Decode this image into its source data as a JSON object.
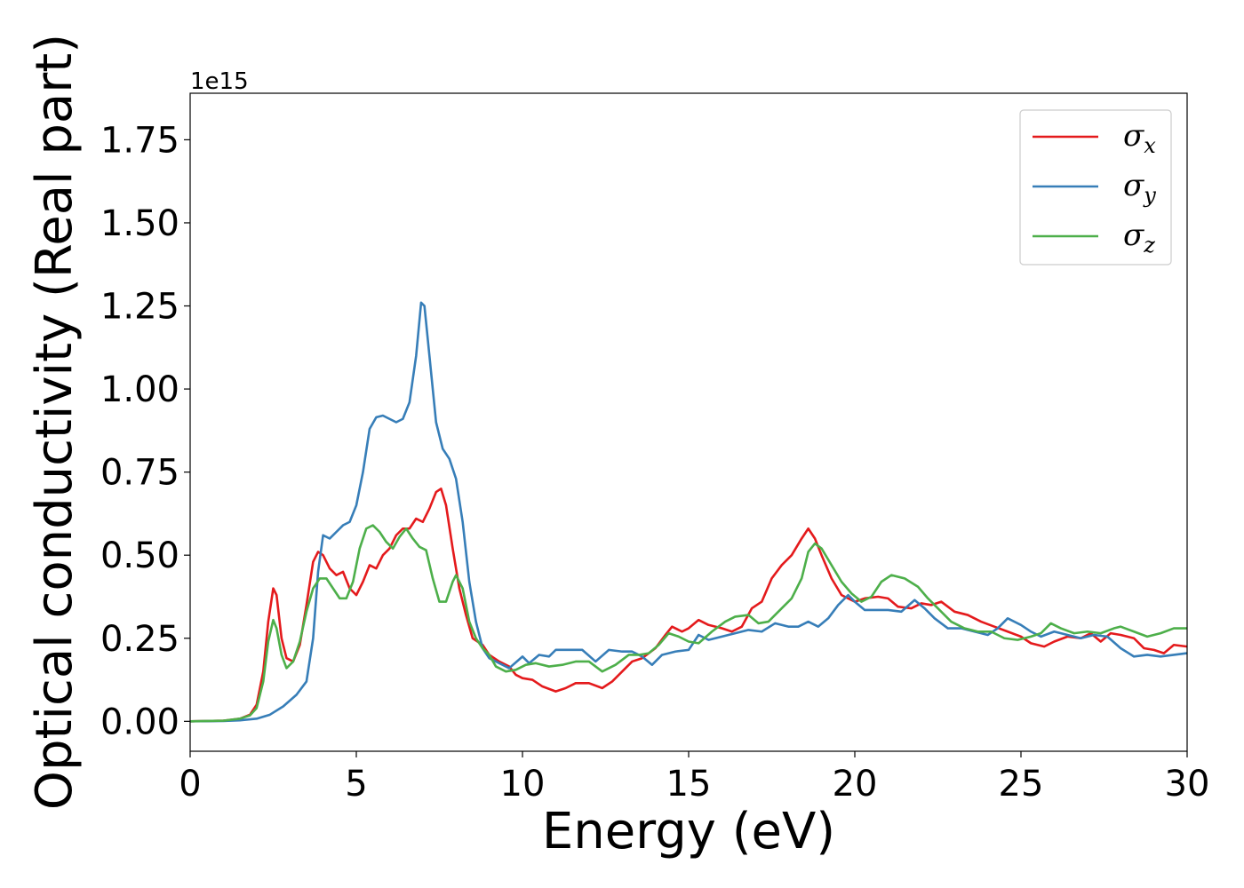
{
  "chart_data": {
    "type": "line",
    "title": "",
    "xlabel": "Energy (eV)",
    "ylabel": "Optical conductivity (Real part)",
    "y_offset_label": "1e15",
    "xlim": [
      0,
      30
    ],
    "ylim": [
      -0.09,
      1.89
    ],
    "x_ticks": [
      0,
      5,
      10,
      15,
      20,
      25,
      30
    ],
    "y_ticks": [
      0.0,
      0.25,
      0.5,
      0.75,
      1.0,
      1.25,
      1.5,
      1.75
    ],
    "x_tick_labels": [
      "0",
      "5",
      "10",
      "15",
      "20",
      "25",
      "30"
    ],
    "y_tick_labels": [
      "0.00",
      "0.25",
      "0.50",
      "0.75",
      "1.00",
      "1.25",
      "1.50",
      "1.75"
    ],
    "grid": false,
    "legend_position": "top-right",
    "series": [
      {
        "name": "σx",
        "name_symbol": "σ",
        "name_sub": "x",
        "color": "#e41a1c",
        "points": [
          [
            0,
            0
          ],
          [
            1,
            0.002
          ],
          [
            1.5,
            0.008
          ],
          [
            1.8,
            0.02
          ],
          [
            2.0,
            0.05
          ],
          [
            2.2,
            0.15
          ],
          [
            2.35,
            0.3
          ],
          [
            2.5,
            0.4
          ],
          [
            2.6,
            0.38
          ],
          [
            2.75,
            0.25
          ],
          [
            2.9,
            0.19
          ],
          [
            3.1,
            0.18
          ],
          [
            3.3,
            0.23
          ],
          [
            3.5,
            0.35
          ],
          [
            3.7,
            0.48
          ],
          [
            3.85,
            0.51
          ],
          [
            4.0,
            0.5
          ],
          [
            4.2,
            0.46
          ],
          [
            4.4,
            0.44
          ],
          [
            4.6,
            0.45
          ],
          [
            4.8,
            0.4
          ],
          [
            5.0,
            0.38
          ],
          [
            5.2,
            0.42
          ],
          [
            5.4,
            0.47
          ],
          [
            5.6,
            0.46
          ],
          [
            5.8,
            0.5
          ],
          [
            6.0,
            0.52
          ],
          [
            6.2,
            0.56
          ],
          [
            6.4,
            0.58
          ],
          [
            6.6,
            0.58
          ],
          [
            6.8,
            0.61
          ],
          [
            7.0,
            0.6
          ],
          [
            7.2,
            0.64
          ],
          [
            7.4,
            0.69
          ],
          [
            7.55,
            0.7
          ],
          [
            7.7,
            0.65
          ],
          [
            7.9,
            0.52
          ],
          [
            8.1,
            0.4
          ],
          [
            8.3,
            0.32
          ],
          [
            8.5,
            0.25
          ],
          [
            8.8,
            0.23
          ],
          [
            9.0,
            0.2
          ],
          [
            9.3,
            0.18
          ],
          [
            9.6,
            0.165
          ],
          [
            9.8,
            0.14
          ],
          [
            10.0,
            0.13
          ],
          [
            10.3,
            0.125
          ],
          [
            10.6,
            0.105
          ],
          [
            11.0,
            0.09
          ],
          [
            11.3,
            0.1
          ],
          [
            11.6,
            0.115
          ],
          [
            12.0,
            0.115
          ],
          [
            12.4,
            0.1
          ],
          [
            12.7,
            0.12
          ],
          [
            13.0,
            0.15
          ],
          [
            13.3,
            0.18
          ],
          [
            13.6,
            0.19
          ],
          [
            14.0,
            0.22
          ],
          [
            14.3,
            0.26
          ],
          [
            14.5,
            0.285
          ],
          [
            14.8,
            0.27
          ],
          [
            15.0,
            0.28
          ],
          [
            15.3,
            0.305
          ],
          [
            15.6,
            0.29
          ],
          [
            16.0,
            0.28
          ],
          [
            16.3,
            0.27
          ],
          [
            16.6,
            0.285
          ],
          [
            16.9,
            0.34
          ],
          [
            17.2,
            0.36
          ],
          [
            17.5,
            0.43
          ],
          [
            17.8,
            0.47
          ],
          [
            18.1,
            0.5
          ],
          [
            18.4,
            0.55
          ],
          [
            18.6,
            0.58
          ],
          [
            18.8,
            0.55
          ],
          [
            19.0,
            0.5
          ],
          [
            19.3,
            0.43
          ],
          [
            19.6,
            0.38
          ],
          [
            20.0,
            0.36
          ],
          [
            20.3,
            0.37
          ],
          [
            20.7,
            0.375
          ],
          [
            21.0,
            0.37
          ],
          [
            21.3,
            0.345
          ],
          [
            21.7,
            0.34
          ],
          [
            22.0,
            0.355
          ],
          [
            22.3,
            0.35
          ],
          [
            22.6,
            0.36
          ],
          [
            23.0,
            0.33
          ],
          [
            23.4,
            0.32
          ],
          [
            23.8,
            0.3
          ],
          [
            24.2,
            0.285
          ],
          [
            24.6,
            0.27
          ],
          [
            25.0,
            0.255
          ],
          [
            25.3,
            0.235
          ],
          [
            25.7,
            0.225
          ],
          [
            26.0,
            0.24
          ],
          [
            26.4,
            0.255
          ],
          [
            26.8,
            0.25
          ],
          [
            27.1,
            0.265
          ],
          [
            27.4,
            0.24
          ],
          [
            27.7,
            0.265
          ],
          [
            28.0,
            0.26
          ],
          [
            28.4,
            0.25
          ],
          [
            28.7,
            0.22
          ],
          [
            29.0,
            0.215
          ],
          [
            29.3,
            0.205
          ],
          [
            29.6,
            0.23
          ],
          [
            30.0,
            0.225
          ]
        ]
      },
      {
        "name": "σy",
        "name_symbol": "σ",
        "name_sub": "y",
        "color": "#377eb8",
        "points": [
          [
            0,
            0
          ],
          [
            1,
            0.001
          ],
          [
            1.5,
            0.003
          ],
          [
            2.0,
            0.008
          ],
          [
            2.4,
            0.02
          ],
          [
            2.8,
            0.045
          ],
          [
            3.2,
            0.08
          ],
          [
            3.5,
            0.12
          ],
          [
            3.7,
            0.25
          ],
          [
            3.85,
            0.45
          ],
          [
            4.0,
            0.56
          ],
          [
            4.2,
            0.55
          ],
          [
            4.4,
            0.57
          ],
          [
            4.6,
            0.59
          ],
          [
            4.8,
            0.6
          ],
          [
            5.0,
            0.65
          ],
          [
            5.2,
            0.75
          ],
          [
            5.4,
            0.88
          ],
          [
            5.6,
            0.915
          ],
          [
            5.8,
            0.92
          ],
          [
            6.0,
            0.91
          ],
          [
            6.2,
            0.9
          ],
          [
            6.4,
            0.91
          ],
          [
            6.6,
            0.96
          ],
          [
            6.8,
            1.1
          ],
          [
            6.95,
            1.26
          ],
          [
            7.05,
            1.25
          ],
          [
            7.2,
            1.1
          ],
          [
            7.4,
            0.9
          ],
          [
            7.6,
            0.82
          ],
          [
            7.8,
            0.79
          ],
          [
            8.0,
            0.73
          ],
          [
            8.2,
            0.6
          ],
          [
            8.4,
            0.42
          ],
          [
            8.6,
            0.3
          ],
          [
            8.8,
            0.22
          ],
          [
            9.0,
            0.19
          ],
          [
            9.3,
            0.175
          ],
          [
            9.6,
            0.16
          ],
          [
            10.0,
            0.195
          ],
          [
            10.2,
            0.175
          ],
          [
            10.5,
            0.2
          ],
          [
            10.8,
            0.195
          ],
          [
            11.0,
            0.215
          ],
          [
            11.4,
            0.215
          ],
          [
            11.8,
            0.215
          ],
          [
            12.2,
            0.18
          ],
          [
            12.6,
            0.215
          ],
          [
            13.0,
            0.21
          ],
          [
            13.3,
            0.21
          ],
          [
            13.6,
            0.195
          ],
          [
            13.9,
            0.17
          ],
          [
            14.2,
            0.2
          ],
          [
            14.6,
            0.21
          ],
          [
            15.0,
            0.215
          ],
          [
            15.3,
            0.26
          ],
          [
            15.6,
            0.245
          ],
          [
            16.0,
            0.255
          ],
          [
            16.4,
            0.265
          ],
          [
            16.8,
            0.275
          ],
          [
            17.2,
            0.27
          ],
          [
            17.6,
            0.295
          ],
          [
            18.0,
            0.285
          ],
          [
            18.3,
            0.285
          ],
          [
            18.6,
            0.3
          ],
          [
            18.9,
            0.285
          ],
          [
            19.2,
            0.31
          ],
          [
            19.5,
            0.35
          ],
          [
            19.8,
            0.38
          ],
          [
            20.0,
            0.36
          ],
          [
            20.3,
            0.335
          ],
          [
            20.7,
            0.335
          ],
          [
            21.0,
            0.335
          ],
          [
            21.4,
            0.33
          ],
          [
            21.8,
            0.365
          ],
          [
            22.1,
            0.34
          ],
          [
            22.4,
            0.31
          ],
          [
            22.8,
            0.28
          ],
          [
            23.2,
            0.28
          ],
          [
            23.6,
            0.27
          ],
          [
            24.0,
            0.26
          ],
          [
            24.3,
            0.28
          ],
          [
            24.6,
            0.31
          ],
          [
            25.0,
            0.29
          ],
          [
            25.3,
            0.27
          ],
          [
            25.6,
            0.255
          ],
          [
            26.0,
            0.27
          ],
          [
            26.4,
            0.26
          ],
          [
            26.8,
            0.25
          ],
          [
            27.2,
            0.26
          ],
          [
            27.6,
            0.255
          ],
          [
            28.0,
            0.22
          ],
          [
            28.4,
            0.195
          ],
          [
            28.8,
            0.2
          ],
          [
            29.2,
            0.195
          ],
          [
            29.6,
            0.2
          ],
          [
            30.0,
            0.205
          ]
        ]
      },
      {
        "name": "σz",
        "name_symbol": "σ",
        "name_sub": "z",
        "color": "#4daf4a",
        "points": [
          [
            0,
            0
          ],
          [
            1,
            0.002
          ],
          [
            1.5,
            0.008
          ],
          [
            1.8,
            0.018
          ],
          [
            2.0,
            0.04
          ],
          [
            2.2,
            0.12
          ],
          [
            2.35,
            0.24
          ],
          [
            2.5,
            0.305
          ],
          [
            2.6,
            0.28
          ],
          [
            2.75,
            0.2
          ],
          [
            2.9,
            0.16
          ],
          [
            3.1,
            0.18
          ],
          [
            3.3,
            0.24
          ],
          [
            3.5,
            0.33
          ],
          [
            3.7,
            0.4
          ],
          [
            3.9,
            0.43
          ],
          [
            4.1,
            0.43
          ],
          [
            4.3,
            0.4
          ],
          [
            4.5,
            0.37
          ],
          [
            4.7,
            0.37
          ],
          [
            4.9,
            0.42
          ],
          [
            5.1,
            0.52
          ],
          [
            5.3,
            0.58
          ],
          [
            5.5,
            0.59
          ],
          [
            5.7,
            0.57
          ],
          [
            5.9,
            0.54
          ],
          [
            6.1,
            0.52
          ],
          [
            6.3,
            0.555
          ],
          [
            6.5,
            0.58
          ],
          [
            6.7,
            0.55
          ],
          [
            6.9,
            0.525
          ],
          [
            7.1,
            0.515
          ],
          [
            7.3,
            0.43
          ],
          [
            7.5,
            0.36
          ],
          [
            7.7,
            0.36
          ],
          [
            7.9,
            0.42
          ],
          [
            8.0,
            0.44
          ],
          [
            8.2,
            0.4
          ],
          [
            8.4,
            0.3
          ],
          [
            8.6,
            0.25
          ],
          [
            8.8,
            0.22
          ],
          [
            9.0,
            0.2
          ],
          [
            9.2,
            0.165
          ],
          [
            9.5,
            0.15
          ],
          [
            9.8,
            0.155
          ],
          [
            10.1,
            0.17
          ],
          [
            10.4,
            0.175
          ],
          [
            10.8,
            0.165
          ],
          [
            11.2,
            0.17
          ],
          [
            11.6,
            0.18
          ],
          [
            12.0,
            0.18
          ],
          [
            12.4,
            0.15
          ],
          [
            12.8,
            0.17
          ],
          [
            13.2,
            0.2
          ],
          [
            13.5,
            0.2
          ],
          [
            13.8,
            0.205
          ],
          [
            14.1,
            0.23
          ],
          [
            14.4,
            0.265
          ],
          [
            14.7,
            0.255
          ],
          [
            15.0,
            0.24
          ],
          [
            15.3,
            0.235
          ],
          [
            15.7,
            0.27
          ],
          [
            16.1,
            0.3
          ],
          [
            16.4,
            0.315
          ],
          [
            16.8,
            0.32
          ],
          [
            17.1,
            0.295
          ],
          [
            17.4,
            0.3
          ],
          [
            17.8,
            0.34
          ],
          [
            18.1,
            0.37
          ],
          [
            18.4,
            0.43
          ],
          [
            18.6,
            0.51
          ],
          [
            18.8,
            0.535
          ],
          [
            19.0,
            0.52
          ],
          [
            19.3,
            0.47
          ],
          [
            19.6,
            0.42
          ],
          [
            19.9,
            0.385
          ],
          [
            20.2,
            0.36
          ],
          [
            20.5,
            0.375
          ],
          [
            20.8,
            0.42
          ],
          [
            21.1,
            0.44
          ],
          [
            21.5,
            0.43
          ],
          [
            21.9,
            0.405
          ],
          [
            22.2,
            0.37
          ],
          [
            22.5,
            0.34
          ],
          [
            22.9,
            0.3
          ],
          [
            23.3,
            0.28
          ],
          [
            23.7,
            0.27
          ],
          [
            24.1,
            0.27
          ],
          [
            24.5,
            0.25
          ],
          [
            24.9,
            0.245
          ],
          [
            25.3,
            0.255
          ],
          [
            25.6,
            0.265
          ],
          [
            25.9,
            0.295
          ],
          [
            26.2,
            0.28
          ],
          [
            26.6,
            0.265
          ],
          [
            27.0,
            0.27
          ],
          [
            27.4,
            0.265
          ],
          [
            27.8,
            0.28
          ],
          [
            28.0,
            0.285
          ],
          [
            28.4,
            0.27
          ],
          [
            28.8,
            0.255
          ],
          [
            29.2,
            0.265
          ],
          [
            29.6,
            0.28
          ],
          [
            30.0,
            0.28
          ]
        ]
      }
    ]
  }
}
